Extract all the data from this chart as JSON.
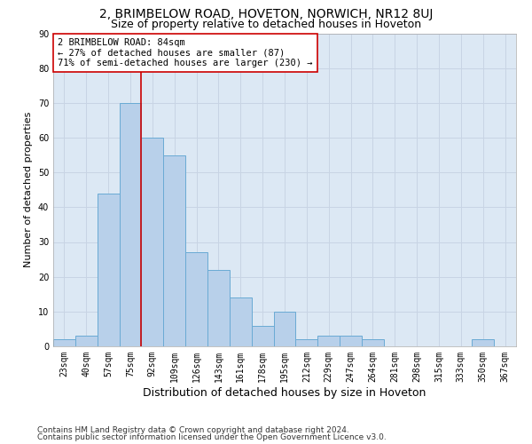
{
  "title1": "2, BRIMBELOW ROAD, HOVETON, NORWICH, NR12 8UJ",
  "title2": "Size of property relative to detached houses in Hoveton",
  "xlabel": "Distribution of detached houses by size in Hoveton",
  "ylabel": "Number of detached properties",
  "footer1": "Contains HM Land Registry data © Crown copyright and database right 2024.",
  "footer2": "Contains public sector information licensed under the Open Government Licence v3.0.",
  "categories": [
    "23sqm",
    "40sqm",
    "57sqm",
    "75sqm",
    "92sqm",
    "109sqm",
    "126sqm",
    "143sqm",
    "161sqm",
    "178sqm",
    "195sqm",
    "212sqm",
    "229sqm",
    "247sqm",
    "264sqm",
    "281sqm",
    "298sqm",
    "315sqm",
    "333sqm",
    "350sqm",
    "367sqm"
  ],
  "values": [
    2,
    3,
    44,
    70,
    60,
    55,
    27,
    22,
    14,
    6,
    10,
    2,
    3,
    3,
    2,
    0,
    0,
    0,
    0,
    2,
    0
  ],
  "bar_color": "#b8d0ea",
  "bar_edge_color": "#6aaad4",
  "vline_x": 3.5,
  "vline_color": "#cc0000",
  "annotation_line1": "2 BRIMBELOW ROAD: 84sqm",
  "annotation_line2": "← 27% of detached houses are smaller (87)",
  "annotation_line3": "71% of semi-detached houses are larger (230) →",
  "annotation_box_color": "#ffffff",
  "annotation_box_edge": "#cc0000",
  "ylim": [
    0,
    90
  ],
  "yticks": [
    0,
    10,
    20,
    30,
    40,
    50,
    60,
    70,
    80,
    90
  ],
  "grid_color": "#c8d4e4",
  "bg_color": "#dce8f4",
  "title1_fontsize": 10,
  "title2_fontsize": 9,
  "xlabel_fontsize": 9,
  "ylabel_fontsize": 8,
  "tick_fontsize": 7,
  "annot_fontsize": 7.5,
  "footer_fontsize": 6.5
}
